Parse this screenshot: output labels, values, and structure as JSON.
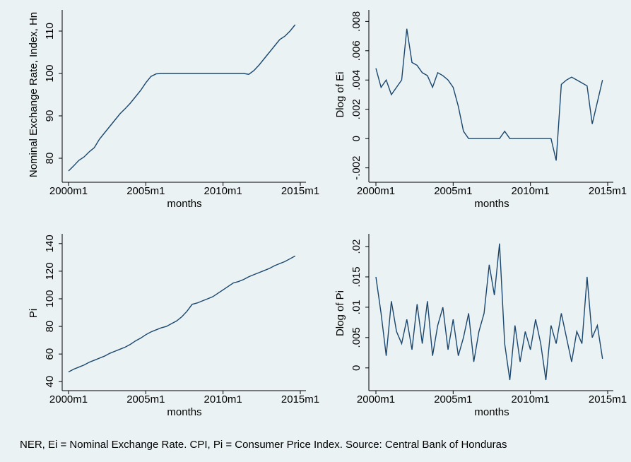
{
  "chart_data": [
    {
      "type": "line",
      "y_label": "Nominal Exchange Rate, Index, Hn",
      "x_label": "months",
      "color": "#1a476f",
      "x": [
        "2000m1",
        "2000m5",
        "2000m9",
        "2001m1",
        "2001m5",
        "2001m9",
        "2002m1",
        "2002m5",
        "2002m9",
        "2003m1",
        "2003m5",
        "2003m9",
        "2004m1",
        "2004m5",
        "2004m9",
        "2005m1",
        "2005m5",
        "2005m9",
        "2006m1",
        "2006m5",
        "2006m9",
        "2007m1",
        "2007m5",
        "2007m9",
        "2008m1",
        "2008m5",
        "2008m9",
        "2009m1",
        "2009m5",
        "2009m9",
        "2010m1",
        "2010m5",
        "2010m9",
        "2011m1",
        "2011m5",
        "2011m9",
        "2012m1",
        "2012m5",
        "2012m9",
        "2013m1",
        "2013m5",
        "2013m9",
        "2014m1",
        "2014m5",
        "2014m9"
      ],
      "values": [
        77,
        78.2,
        79.5,
        80.3,
        81.5,
        82.5,
        84.5,
        86,
        87.5,
        89,
        90.5,
        91.7,
        93,
        94.5,
        96,
        97.8,
        99.3,
        99.9,
        100,
        100,
        100,
        100,
        100,
        100,
        100,
        100,
        100,
        100,
        100,
        100,
        100,
        100,
        100,
        100,
        100,
        99.8,
        100.7,
        102,
        103.5,
        105,
        106.5,
        108,
        108.8,
        110,
        111.5
      ],
      "xlim": [
        "2000m1",
        "2015m1"
      ],
      "xticks": [
        "2000m1",
        "2005m1",
        "2010m1",
        "2015m1"
      ],
      "ylim": [
        76,
        114
      ],
      "yticks": [
        80,
        90,
        100,
        110
      ]
    },
    {
      "type": "line",
      "y_label": "Dlog of Ei",
      "x_label": "months",
      "color": "#1a476f",
      "x": [
        "2000m1",
        "2000m5",
        "2000m9",
        "2001m1",
        "2001m5",
        "2001m9",
        "2002m1",
        "2002m5",
        "2002m9",
        "2003m1",
        "2003m5",
        "2003m9",
        "2004m1",
        "2004m5",
        "2004m9",
        "2005m1",
        "2005m5",
        "2005m9",
        "2006m1",
        "2006m5",
        "2006m9",
        "2007m1",
        "2007m5",
        "2007m9",
        "2008m1",
        "2008m5",
        "2008m9",
        "2009m1",
        "2009m5",
        "2009m9",
        "2010m1",
        "2010m5",
        "2010m9",
        "2011m1",
        "2011m5",
        "2011m9",
        "2012m1",
        "2012m5",
        "2012m9",
        "2013m1",
        "2013m5",
        "2013m9",
        "2014m1",
        "2014m5",
        "2014m9"
      ],
      "values": [
        0.0048,
        0.0035,
        0.004,
        0.003,
        0.0035,
        0.004,
        0.0075,
        0.0052,
        0.005,
        0.0045,
        0.0043,
        0.0035,
        0.0045,
        0.0043,
        0.004,
        0.0035,
        0.0022,
        0.0005,
        0,
        0,
        0,
        0,
        0,
        0,
        0,
        0.0005,
        0,
        0,
        0,
        0,
        0,
        0,
        0,
        0,
        0,
        -0.0015,
        0.0037,
        0.004,
        0.0042,
        0.004,
        0.0038,
        0.0036,
        0.001,
        0.0025,
        0.004
      ],
      "xlim": [
        "2000m1",
        "2015m1"
      ],
      "xticks": [
        "2000m1",
        "2005m1",
        "2010m1",
        "2015m1"
      ],
      "ylim": [
        -0.0025,
        0.0085
      ],
      "yticks": [
        {
          "value": -0.002,
          "label": "-.002"
        },
        0,
        {
          "value": 0.002,
          "label": ".002"
        },
        {
          "value": 0.004,
          "label": ".004"
        },
        {
          "value": 0.006,
          "label": ".006"
        },
        {
          "value": 0.008,
          "label": ".008"
        }
      ]
    },
    {
      "type": "line",
      "y_label": "Pi",
      "x_label": "months",
      "color": "#1a476f",
      "x": [
        "2000m1",
        "2000m5",
        "2000m9",
        "2001m1",
        "2001m5",
        "2001m9",
        "2002m1",
        "2002m5",
        "2002m9",
        "2003m1",
        "2003m5",
        "2003m9",
        "2004m1",
        "2004m5",
        "2004m9",
        "2005m1",
        "2005m5",
        "2005m9",
        "2006m1",
        "2006m5",
        "2006m9",
        "2007m1",
        "2007m5",
        "2007m9",
        "2008m1",
        "2008m5",
        "2008m9",
        "2009m1",
        "2009m5",
        "2009m9",
        "2010m1",
        "2010m5",
        "2010m9",
        "2011m1",
        "2011m5",
        "2011m9",
        "2012m1",
        "2012m5",
        "2012m9",
        "2013m1",
        "2013m5",
        "2013m9",
        "2014m1",
        "2014m5",
        "2014m9"
      ],
      "values": [
        47,
        49,
        50.5,
        52,
        54,
        55.5,
        57,
        58.5,
        60.5,
        62,
        63.5,
        65,
        67,
        69.5,
        71.5,
        74,
        76,
        77.5,
        79,
        80,
        82,
        84,
        87,
        91,
        96,
        97,
        98.5,
        100,
        101.5,
        104,
        106.5,
        109,
        111.5,
        112.5,
        114,
        116,
        117.5,
        119,
        120.5,
        122,
        124,
        125.5,
        127,
        129,
        131
      ],
      "xlim": [
        "2000m1",
        "2015m1"
      ],
      "xticks": [
        "2000m1",
        "2005m1",
        "2010m1",
        "2015m1"
      ],
      "ylim": [
        35,
        144
      ],
      "yticks": [
        40,
        60,
        80,
        100,
        120,
        140
      ]
    },
    {
      "type": "line",
      "y_label": "Dlog of Pi",
      "x_label": "months",
      "color": "#1a476f",
      "x": [
        "2000m1",
        "2000m5",
        "2000m9",
        "2001m1",
        "2001m5",
        "2001m9",
        "2002m1",
        "2002m5",
        "2002m9",
        "2003m1",
        "2003m5",
        "2003m9",
        "2004m1",
        "2004m5",
        "2004m9",
        "2005m1",
        "2005m5",
        "2005m9",
        "2006m1",
        "2006m5",
        "2006m9",
        "2007m1",
        "2007m5",
        "2007m9",
        "2008m1",
        "2008m5",
        "2008m9",
        "2009m1",
        "2009m5",
        "2009m9",
        "2010m1",
        "2010m5",
        "2010m9",
        "2011m1",
        "2011m5",
        "2011m9",
        "2012m1",
        "2012m5",
        "2012m9",
        "2013m1",
        "2013m5",
        "2013m9",
        "2014m1",
        "2014m5",
        "2014m9"
      ],
      "values": [
        0.015,
        0.009,
        0.002,
        0.011,
        0.006,
        0.004,
        0.008,
        0.003,
        0.0105,
        0.004,
        0.011,
        0.002,
        0.007,
        0.01,
        0.003,
        0.008,
        0.002,
        0.005,
        0.009,
        0.001,
        0.006,
        0.009,
        0.017,
        0.012,
        0.0205,
        0.004,
        -0.002,
        0.007,
        0.001,
        0.006,
        0.003,
        0.008,
        0.004,
        -0.002,
        0.007,
        0.004,
        0.009,
        0.005,
        0.001,
        0.006,
        0.004,
        0.015,
        0.005,
        0.007,
        0.0015
      ],
      "xlim": [
        "2000m1",
        "2015m1"
      ],
      "xticks": [
        "2000m1",
        "2005m1",
        "2010m1",
        "2015m1"
      ],
      "ylim": [
        -0.0034,
        0.0214
      ],
      "yticks": [
        0,
        {
          "value": 0.005,
          "label": ".005"
        },
        {
          "value": 0.01,
          "label": ".01"
        },
        {
          "value": 0.015,
          "label": ".015"
        },
        {
          "value": 0.02,
          "label": ".02"
        }
      ]
    }
  ],
  "note": "NER, Ei = Nominal Exchange Rate. CPI, Pi = Consumer Price Index. Source: Central Bank of Honduras"
}
